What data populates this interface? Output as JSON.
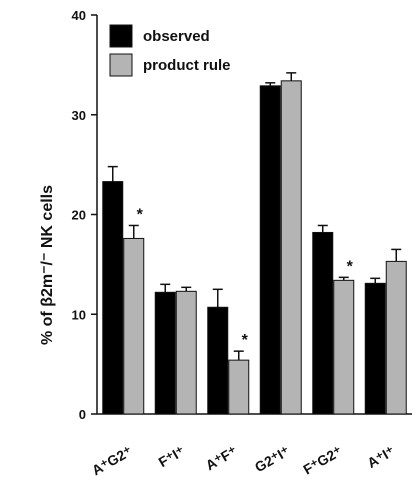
{
  "chart_data": {
    "type": "bar",
    "ylabel": "% of β2m⁻/⁻ NK cells",
    "ylim": [
      0,
      40
    ],
    "yticks": [
      0,
      10,
      20,
      30,
      40
    ],
    "categories": [
      "A⁺G2⁺",
      "F⁺I⁺",
      "A⁺F⁺",
      "G2⁺I⁺",
      "F⁺G2⁺",
      "A⁺I⁺"
    ],
    "series": [
      {
        "name": "observed",
        "color": "#000000",
        "values": [
          23.3,
          12.2,
          10.7,
          32.9,
          18.2,
          13.1
        ],
        "errors": [
          1.5,
          0.8,
          1.8,
          0.3,
          0.7,
          0.5
        ]
      },
      {
        "name": "product rule",
        "color": "#b4b4b4",
        "values": [
          17.6,
          12.3,
          5.4,
          33.4,
          13.4,
          15.3
        ],
        "errors": [
          1.3,
          0.4,
          0.9,
          0.8,
          0.3,
          1.2
        ]
      }
    ],
    "significance_marks": [
      {
        "category_index": 0,
        "text": "*"
      },
      {
        "category_index": 2,
        "text": "*"
      },
      {
        "category_index": 4,
        "text": "*"
      }
    ],
    "legend": "top-left",
    "grid": false
  }
}
